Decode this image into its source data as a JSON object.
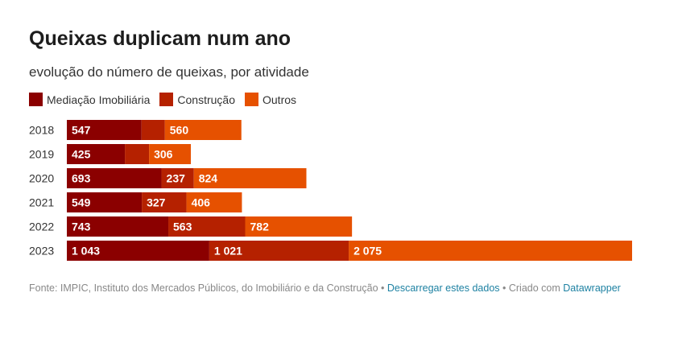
{
  "chart_data": {
    "type": "bar",
    "orientation": "horizontal",
    "stacked": true,
    "title": "Queixas duplicam num ano",
    "subtitle": "evolução do número de queixas, por atividade",
    "categories": [
      "2018",
      "2019",
      "2020",
      "2021",
      "2022",
      "2023"
    ],
    "series": [
      {
        "name": "Mediação Imobiliária",
        "color": "#8b0000",
        "values": [
          547,
          425,
          693,
          549,
          743,
          1043
        ],
        "labels": [
          "547",
          "425",
          "693",
          "549",
          "743",
          "1 043"
        ]
      },
      {
        "name": "Construção",
        "color": "#b52100",
        "values": [
          171,
          177,
          237,
          327,
          563,
          1021
        ],
        "labels": [
          "",
          "",
          "237",
          "327",
          "563",
          "1 021"
        ]
      },
      {
        "name": "Outros",
        "color": "#e65100",
        "values": [
          560,
          306,
          824,
          406,
          782,
          2075
        ],
        "labels": [
          "560",
          "306",
          "824",
          "406",
          "782",
          "2 075"
        ]
      }
    ],
    "grid": false,
    "legend_position": "top-left"
  },
  "footer": {
    "source": "Fonte: IMPIC, Instituto dos Mercados Públicos, do Imobiliário e da Construção • ",
    "download": "Descarregar estes dados",
    "created": " • Criado com ",
    "tool": "Datawrapper"
  }
}
